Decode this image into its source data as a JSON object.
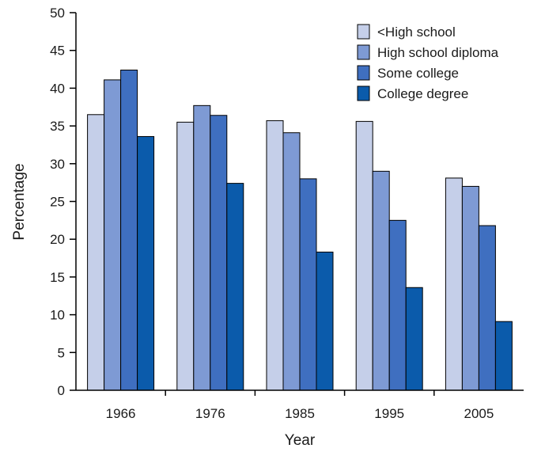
{
  "chart_data": {
    "type": "bar",
    "title": "",
    "xlabel": "Year",
    "ylabel": "Percentage",
    "ylim": [
      0,
      50
    ],
    "yticks": [
      0,
      5,
      10,
      15,
      20,
      25,
      30,
      35,
      40,
      45,
      50
    ],
    "categories": [
      "1966",
      "1976",
      "1985",
      "1995",
      "2005"
    ],
    "series": [
      {
        "name": "<High school",
        "color": "#c5cfe9",
        "values": [
          36.5,
          35.5,
          35.7,
          35.6,
          28.1
        ]
      },
      {
        "name": "High school diploma",
        "color": "#7e9ad4",
        "values": [
          41.1,
          37.7,
          34.1,
          29.0,
          27.0
        ]
      },
      {
        "name": "Some college",
        "color": "#3f6fc0",
        "values": [
          42.4,
          36.4,
          28.0,
          22.5,
          21.8
        ]
      },
      {
        "name": "College degree",
        "color": "#0b5bab",
        "values": [
          33.6,
          27.4,
          18.3,
          13.6,
          9.1
        ]
      }
    ],
    "legend_position": "top-right",
    "grid": false
  }
}
